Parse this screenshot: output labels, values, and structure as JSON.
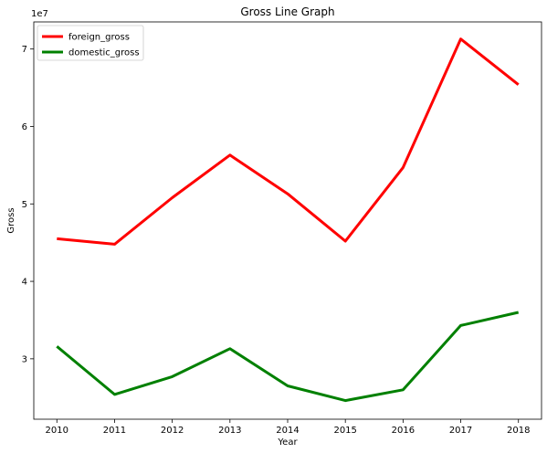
{
  "chart_data": {
    "type": "line",
    "title": "Gross Line Graph",
    "xlabel": "Year",
    "ylabel": "Gross",
    "y_offset_label": "1e7",
    "x": [
      2010,
      2011,
      2012,
      2013,
      2014,
      2015,
      2016,
      2017,
      2018
    ],
    "x_ticks": [
      "2010",
      "2011",
      "2012",
      "2013",
      "2014",
      "2015",
      "2016",
      "2017",
      "2018"
    ],
    "y_ticks": [
      "3",
      "4",
      "5",
      "6",
      "7"
    ],
    "y_tick_values": [
      3,
      4,
      5,
      6,
      7
    ],
    "ylim": [
      2.22,
      7.35
    ],
    "xlim": [
      2009.6,
      2018.4
    ],
    "legend_position": "top-left",
    "grid": false,
    "series": [
      {
        "name": "foreign_gross",
        "color": "#ff0000",
        "values": [
          4.55,
          4.48,
          5.08,
          5.63,
          5.13,
          4.52,
          5.47,
          7.13,
          6.54
        ]
      },
      {
        "name": "domestic_gross",
        "color": "#008000",
        "values": [
          3.16,
          2.54,
          2.77,
          3.13,
          2.65,
          2.46,
          2.6,
          3.43,
          3.6
        ]
      }
    ]
  }
}
